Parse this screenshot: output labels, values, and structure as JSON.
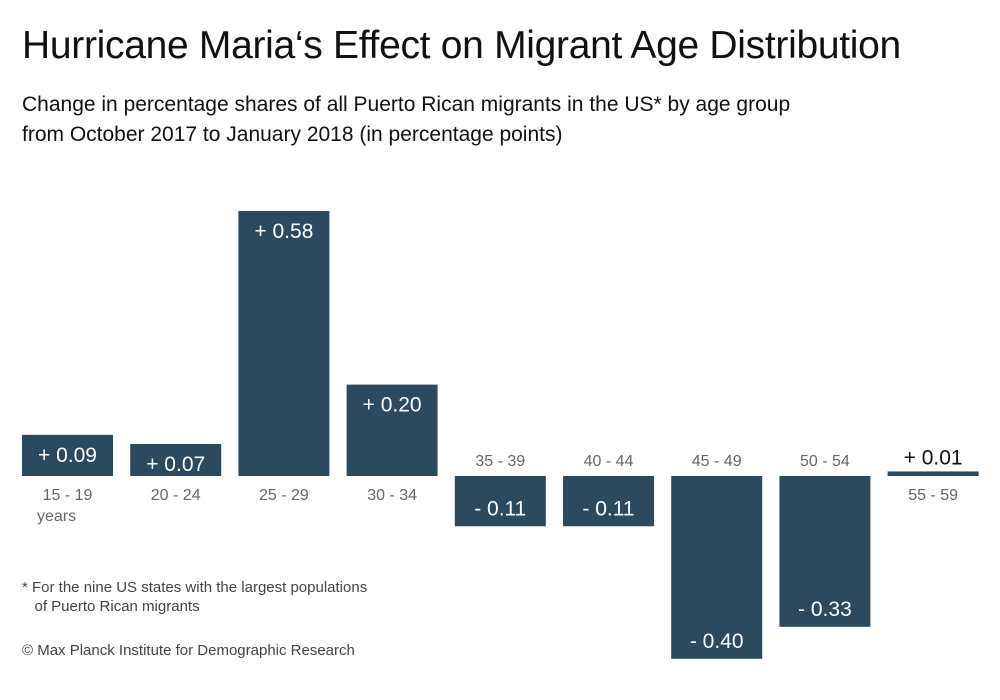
{
  "chart_data": {
    "type": "bar",
    "title": "Hurricane Maria‘s Effect on Migrant Age Distribution",
    "subtitle_lines": [
      "Change in percentage shares of all Puerto Rican migrants in the US* by age group",
      "from October 2017 to January 2018 (in percentage points)"
    ],
    "categories": [
      "15 - 19",
      "20 - 24",
      "25 - 29",
      "30 - 34",
      "35 - 39",
      "40 - 44",
      "45 - 49",
      "50 - 54",
      "55 - 59"
    ],
    "first_category_suffix": "years",
    "values": [
      0.09,
      0.07,
      0.58,
      0.2,
      -0.11,
      -0.11,
      -0.4,
      -0.33,
      0.01
    ],
    "data_labels": [
      "+ 0.09",
      "+ 0.07",
      "+ 0.58",
      "+ 0.20",
      "- 0.11",
      "- 0.11",
      "- 0.40",
      "- 0.33",
      "+ 0.01"
    ],
    "colors": {
      "bar": "#2b4a60",
      "label_inside": "#ffffff",
      "label_outside": "#111111",
      "category": "#666666"
    },
    "grid": false,
    "legend": "none"
  },
  "footnote": "* For the nine US states with the largest populations\n   of Puerto Rican migrants",
  "credit": "© Max Planck Institute for Demographic Research"
}
